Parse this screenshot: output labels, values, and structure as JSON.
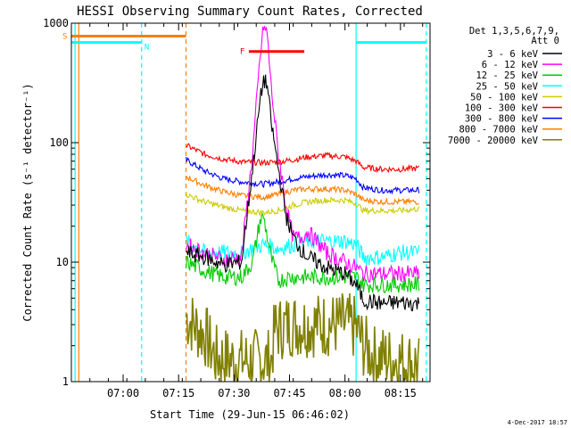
{
  "chart_data": {
    "type": "line",
    "title": "HESSI Observing Summary Count Rates, Corrected",
    "xlabel": "Start Time (29-Jun-15 06:46:02)",
    "ylabel": "Corrected Count Rate (s⁻¹ detector⁻¹)",
    "yscale": "log",
    "ylim": [
      1,
      1000
    ],
    "xlim_minutes_after_start": [
      0,
      97
    ],
    "x_tick_labels": [
      "07:00",
      "07:15",
      "07:30",
      "07:45",
      "08:00",
      "08:15"
    ],
    "y_tick_labels": [
      "1",
      "10",
      "100",
      "1000"
    ],
    "legend_placement": "right",
    "legend_header": [
      "Det 1,3,5,6,7,9,",
      "Att 0"
    ],
    "footer": "4-Dec-2017 18:57",
    "flags": [
      {
        "label": "S",
        "color": "#ff7f00",
        "x_start": "06:46",
        "x_end": "07:17",
        "y": 780
      },
      {
        "label": "N",
        "color": "#00ffff",
        "x_start": "06:46",
        "x_end": "07:05",
        "y": 690
      },
      {
        "label": "F",
        "color": "#ff0000",
        "x_start": "07:34",
        "x_end": "07:49",
        "y": 580
      },
      {
        "label": "",
        "color": "#00ffff",
        "x_start": "08:03",
        "x_end": "08:22",
        "y": 690
      }
    ],
    "vertical_markers": [
      {
        "time": "06:47",
        "color": "#00ffff",
        "style": "solid"
      },
      {
        "time": "06:48",
        "color": "#ff7f00",
        "style": "solid"
      },
      {
        "time": "07:05",
        "color": "#00ffff",
        "style": "dashed"
      },
      {
        "time": "07:17",
        "color": "#ff7f00",
        "style": "dashed"
      },
      {
        "time": "08:03",
        "color": "#00ffff",
        "style": "solid"
      },
      {
        "time": "08:22",
        "color": "#00ffff",
        "style": "dashed"
      }
    ],
    "series": [
      {
        "name": "3 - 6 keV",
        "color": "#000000",
        "x": [
          "07:17",
          "07:22",
          "07:27",
          "07:32",
          "07:35",
          "07:37",
          "07:38",
          "07:39",
          "07:40",
          "07:42",
          "07:44",
          "07:46",
          "07:48",
          "07:50",
          "07:55",
          "08:00",
          "08:03",
          "08:05",
          "08:10",
          "08:15",
          "08:20"
        ],
        "y": [
          12,
          11,
          9.5,
          10,
          60,
          220,
          340,
          300,
          150,
          60,
          25,
          16,
          13,
          11,
          9,
          8,
          6.5,
          4.8,
          4.5,
          4.6,
          4.5
        ]
      },
      {
        "name": "6 - 12 keV",
        "color": "#ff00ff",
        "x": [
          "07:17",
          "07:22",
          "07:27",
          "07:32",
          "07:35",
          "07:37",
          "07:38",
          "07:39",
          "07:40",
          "07:42",
          "07:44",
          "07:46",
          "07:48",
          "07:50",
          "07:55",
          "08:00",
          "08:03",
          "08:05",
          "08:10",
          "08:15",
          "08:20"
        ],
        "y": [
          14,
          12,
          10.5,
          11,
          80,
          500,
          950,
          800,
          300,
          80,
          30,
          16,
          16,
          18,
          12,
          10,
          9,
          8,
          8,
          8,
          8
        ]
      },
      {
        "name": "12 - 25 keV",
        "color": "#00cc00",
        "x": [
          "07:17",
          "07:22",
          "07:27",
          "07:32",
          "07:35",
          "07:37",
          "07:38",
          "07:40",
          "07:42",
          "07:45",
          "07:50",
          "07:55",
          "08:00",
          "08:03",
          "08:05",
          "08:10",
          "08:15",
          "08:20"
        ],
        "y": [
          10,
          8.5,
          7.5,
          7.5,
          10,
          22,
          24,
          11,
          7,
          7.5,
          7.5,
          7.5,
          7.5,
          7.5,
          6.5,
          6.5,
          6.5,
          6.5
        ]
      },
      {
        "name": "25 - 50 keV",
        "color": "#00ffff",
        "x": [
          "07:17",
          "07:22",
          "07:27",
          "07:32",
          "07:35",
          "07:38",
          "07:42",
          "07:46",
          "07:50",
          "07:55",
          "08:00",
          "08:03",
          "08:05",
          "08:10",
          "08:15",
          "08:20"
        ],
        "y": [
          15,
          12,
          12,
          12,
          13,
          14,
          13,
          14,
          15,
          15,
          15,
          14,
          11,
          11,
          12,
          12
        ]
      },
      {
        "name": "50 - 100 keV",
        "color": "#cccc00",
        "x": [
          "07:17",
          "07:22",
          "07:27",
          "07:32",
          "07:38",
          "07:42",
          "07:46",
          "07:50",
          "07:55",
          "08:00",
          "08:03",
          "08:05",
          "08:10",
          "08:15",
          "08:20"
        ],
        "y": [
          37,
          32,
          29,
          27,
          26,
          27,
          30,
          32,
          33,
          33,
          31,
          27,
          27,
          27,
          28
        ]
      },
      {
        "name": "100 - 300 keV",
        "color": "#ff0000",
        "x": [
          "07:17",
          "07:22",
          "07:27",
          "07:32",
          "07:38",
          "07:42",
          "07:46",
          "07:50",
          "07:55",
          "08:00",
          "08:03",
          "08:05",
          "08:10",
          "08:15",
          "08:20"
        ],
        "y": [
          95,
          80,
          73,
          69,
          68,
          69,
          72,
          76,
          78,
          76,
          70,
          62,
          60,
          60,
          61
        ]
      },
      {
        "name": "300 - 800 keV",
        "color": "#0000ff",
        "x": [
          "07:17",
          "07:22",
          "07:27",
          "07:32",
          "07:38",
          "07:42",
          "07:46",
          "07:50",
          "07:55",
          "08:00",
          "08:03",
          "08:05",
          "08:10",
          "08:15",
          "08:20"
        ],
        "y": [
          72,
          58,
          50,
          47,
          45,
          47,
          50,
          52,
          54,
          53,
          50,
          42,
          40,
          40,
          40
        ]
      },
      {
        "name": "800 - 7000 keV",
        "color": "#ff7f00",
        "x": [
          "07:17",
          "07:22",
          "07:27",
          "07:32",
          "07:38",
          "07:42",
          "07:46",
          "07:50",
          "07:55",
          "08:00",
          "08:03",
          "08:05",
          "08:10",
          "08:15",
          "08:20"
        ],
        "y": [
          52,
          44,
          39,
          36,
          35,
          37,
          40,
          41,
          41,
          40,
          37,
          33,
          32,
          32,
          32
        ]
      },
      {
        "name": "7000 - 20000 keV",
        "color": "#808000",
        "x": [
          "07:17",
          "07:20",
          "07:22",
          "07:25",
          "07:30",
          "07:35",
          "07:40",
          "07:41",
          "07:45",
          "07:50",
          "07:55",
          "08:00",
          "08:03",
          "08:05",
          "08:08",
          "08:10",
          "08:15",
          "08:20"
        ],
        "y": [
          3.5,
          2.8,
          2.5,
          1.6,
          1.5,
          1.5,
          1.5,
          2.7,
          3.0,
          3.0,
          3.0,
          3.0,
          2.8,
          2.0,
          1.6,
          1.6,
          1.5,
          1.4
        ]
      }
    ]
  }
}
